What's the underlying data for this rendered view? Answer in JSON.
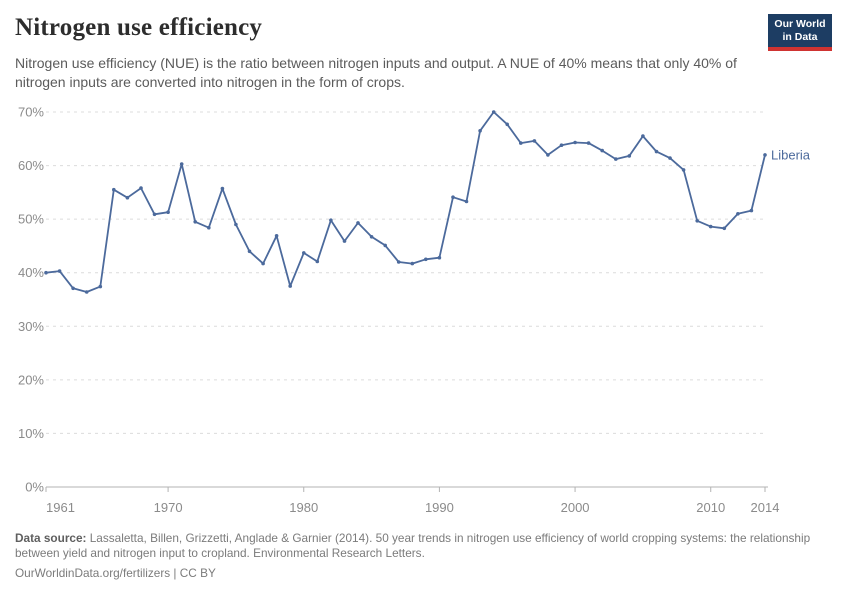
{
  "header": {
    "title": "Nitrogen use efficiency",
    "subtitle": "Nitrogen use efficiency (NUE) is the ratio between nitrogen inputs and output. A NUE of 40% means that only 40% of nitrogen inputs are converted into nitrogen in the form of crops.",
    "logo": {
      "line1": "Our World",
      "line2": "in Data"
    }
  },
  "chart_data": {
    "type": "line",
    "title": "Nitrogen use efficiency",
    "entity_label": "Liberia",
    "unit": "%",
    "xlim": [
      1961,
      2014
    ],
    "ylim": [
      0,
      70
    ],
    "x_ticks": [
      1961,
      1970,
      1980,
      1990,
      2000,
      2010,
      2014
    ],
    "y_ticks": [
      0,
      10,
      20,
      30,
      40,
      50,
      60,
      70
    ],
    "y_tick_suffix": "%",
    "grid": "horizontal-dashed",
    "legend_position": "end-of-line",
    "x": [
      1961,
      1962,
      1963,
      1964,
      1965,
      1966,
      1967,
      1968,
      1969,
      1970,
      1971,
      1972,
      1973,
      1974,
      1975,
      1976,
      1977,
      1978,
      1979,
      1980,
      1981,
      1982,
      1983,
      1984,
      1985,
      1986,
      1987,
      1988,
      1989,
      1990,
      1991,
      1992,
      1993,
      1994,
      1995,
      1996,
      1997,
      1998,
      1999,
      2000,
      2001,
      2002,
      2003,
      2004,
      2005,
      2006,
      2007,
      2008,
      2009,
      2010,
      2011,
      2012,
      2013,
      2014
    ],
    "series": [
      {
        "name": "Liberia",
        "color": "#4c6a9c",
        "values": [
          40.0,
          40.3,
          37.1,
          36.4,
          37.4,
          55.5,
          54.0,
          55.8,
          50.9,
          51.3,
          60.3,
          49.5,
          48.4,
          55.7,
          49.0,
          44.0,
          41.7,
          46.9,
          37.5,
          43.7,
          42.1,
          49.8,
          45.9,
          49.3,
          46.7,
          45.1,
          42.0,
          41.7,
          42.5,
          42.8,
          54.1,
          53.3,
          66.5,
          70.0,
          67.7,
          64.2,
          64.6,
          62.0,
          63.8,
          64.3,
          64.2,
          62.8,
          61.2,
          61.8,
          65.5,
          62.6,
          61.4,
          59.2,
          49.7,
          48.6,
          48.3,
          51.0,
          51.6,
          62.0
        ]
      }
    ]
  },
  "footer": {
    "source_label": "Data source:",
    "source_text": " Lassaletta, Billen, Grizzetti, Anglade & Garnier (2014). 50 year trends in nitrogen use efficiency of world cropping systems: the relationship between yield and nitrogen input to cropland. Environmental Research Letters.",
    "link_line": "OurWorldinData.org/fertilizers | CC BY"
  },
  "colors": {
    "accent_line": "#4c6a9c",
    "grid": "#dcdcdc",
    "axis": "#b3b3b3",
    "tick_label": "#8b8b8b",
    "logo_navy": "#1d3d63",
    "logo_red": "#cf3331"
  }
}
